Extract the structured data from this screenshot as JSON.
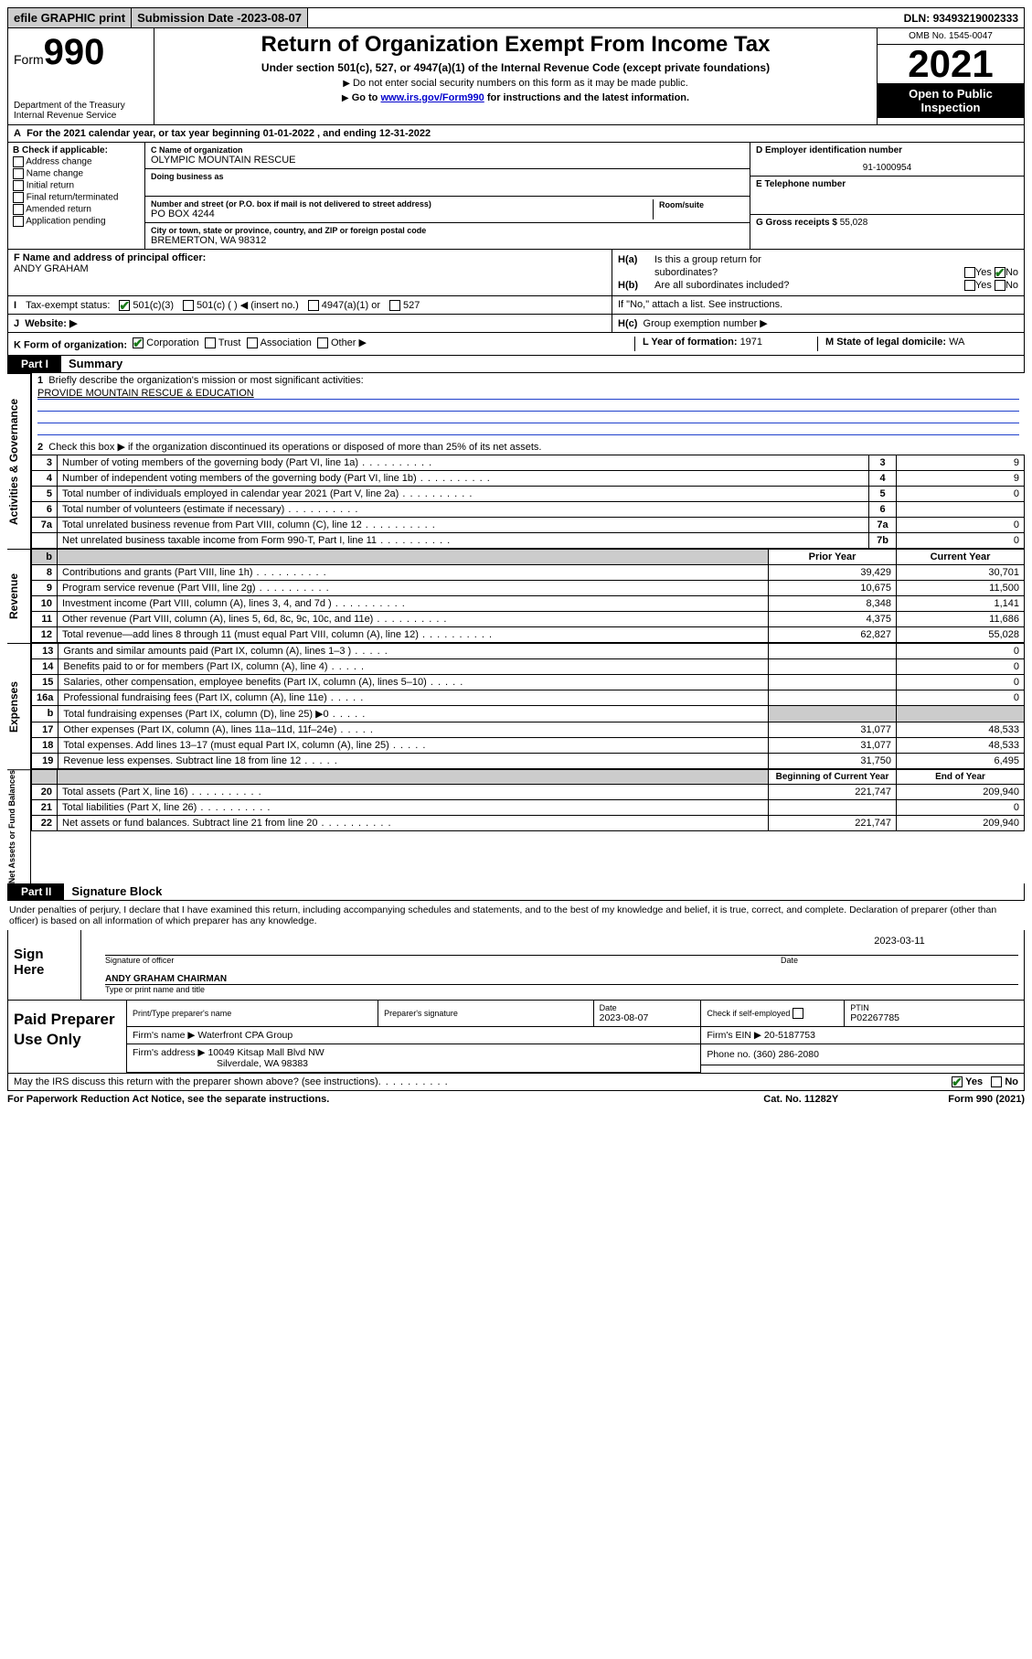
{
  "top": {
    "efile": "efile GRAPHIC print",
    "sub_label": "Submission Date - ",
    "sub_date": "2023-08-07",
    "dln_label": "DLN: ",
    "dln": "93493219002333"
  },
  "header": {
    "form_word": "Form",
    "form_num": "990",
    "dept": "Department of the Treasury",
    "irs": "Internal Revenue Service",
    "title": "Return of Organization Exempt From Income Tax",
    "subtitle": "Under section 501(c), 527, or 4947(a)(1) of the Internal Revenue Code (except private foundations)",
    "note1": "Do not enter social security numbers on this form as it may be made public.",
    "note2_pre": "Go to ",
    "note2_link": "www.irs.gov/Form990",
    "note2_post": " for instructions and the latest information.",
    "omb": "OMB No. 1545-0047",
    "year": "2021",
    "open1": "Open to Public",
    "open2": "Inspection"
  },
  "a_line": "For the 2021 calendar year, or tax year beginning 01-01-2022   , and ending 12-31-2022",
  "a_prefix": "A",
  "b": {
    "header": "B Check if applicable:",
    "items": [
      "Address change",
      "Name change",
      "Initial return",
      "Final return/terminated",
      "Amended return",
      "Application pending"
    ]
  },
  "c": {
    "name_lbl": "C Name of organization",
    "name": "OLYMPIC MOUNTAIN RESCUE",
    "dba_lbl": "Doing business as",
    "addr_lbl": "Number and street (or P.O. box if mail is not delivered to street address)",
    "room_lbl": "Room/suite",
    "addr": "PO BOX 4244",
    "city_lbl": "City or town, state or province, country, and ZIP or foreign postal code",
    "city": "BREMERTON, WA  98312"
  },
  "d": {
    "ein_lbl": "D Employer identification number",
    "ein": "91-1000954",
    "tel_lbl": "E Telephone number",
    "gross_lbl": "G Gross receipts $ ",
    "gross": "55,028"
  },
  "f": {
    "lbl": "F  Name and address of principal officer:",
    "name": "ANDY GRAHAM"
  },
  "h": {
    "a_lbl": "Is this a group return for",
    "a_lbl2": "subordinates?",
    "a_yes": "Yes",
    "a_no": "No",
    "b_lbl": "Are all subordinates included?",
    "b_note": "If \"No,\" attach a list. See instructions.",
    "c_lbl": "Group exemption number ▶"
  },
  "i": {
    "lbl": "Tax-exempt status:",
    "opt1": "501(c)(3)",
    "opt2": "501(c) (   ) ◀ (insert no.)",
    "opt3": "4947(a)(1) or",
    "opt4": "527"
  },
  "j": {
    "lbl": "Website: ▶"
  },
  "k": {
    "lbl": "K Form of organization:",
    "opts": [
      "Corporation",
      "Trust",
      "Association",
      "Other ▶"
    ]
  },
  "l": {
    "lbl": "L Year of formation: ",
    "val": "1971"
  },
  "m": {
    "lbl": "M State of legal domicile: ",
    "val": "WA"
  },
  "part1": {
    "tag": "Part I",
    "title": "Summary"
  },
  "summary": {
    "line1_lbl": "Briefly describe the organization's mission or most significant activities:",
    "line1_val": "PROVIDE MOUNTAIN RESCUE & EDUCATION",
    "line2": "Check this box ▶       if the organization discontinued its operations or disposed of more than 25% of its net assets.",
    "rows_gov": [
      {
        "n": "3",
        "t": "Number of voting members of the governing body (Part VI, line 1a)",
        "box": "3",
        "v": "9"
      },
      {
        "n": "4",
        "t": "Number of independent voting members of the governing body (Part VI, line 1b)",
        "box": "4",
        "v": "9"
      },
      {
        "n": "5",
        "t": "Total number of individuals employed in calendar year 2021 (Part V, line 2a)",
        "box": "5",
        "v": "0"
      },
      {
        "n": "6",
        "t": "Total number of volunteers (estimate if necessary)",
        "box": "6",
        "v": ""
      },
      {
        "n": "7a",
        "t": "Total unrelated business revenue from Part VIII, column (C), line 12",
        "box": "7a",
        "v": "0"
      },
      {
        "n": "",
        "t": "Net unrelated business taxable income from Form 990-T, Part I, line 11",
        "box": "7b",
        "v": "0"
      }
    ],
    "headers": {
      "b": "b",
      "prior": "Prior Year",
      "current": "Current Year"
    },
    "rev": [
      {
        "n": "8",
        "t": "Contributions and grants (Part VIII, line 1h)",
        "p": "39,429",
        "c": "30,701"
      },
      {
        "n": "9",
        "t": "Program service revenue (Part VIII, line 2g)",
        "p": "10,675",
        "c": "11,500"
      },
      {
        "n": "10",
        "t": "Investment income (Part VIII, column (A), lines 3, 4, and 7d )",
        "p": "8,348",
        "c": "1,141"
      },
      {
        "n": "11",
        "t": "Other revenue (Part VIII, column (A), lines 5, 6d, 8c, 9c, 10c, and 11e)",
        "p": "4,375",
        "c": "11,686"
      },
      {
        "n": "12",
        "t": "Total revenue—add lines 8 through 11 (must equal Part VIII, column (A), line 12)",
        "p": "62,827",
        "c": "55,028"
      }
    ],
    "exp": [
      {
        "n": "13",
        "t": "Grants and similar amounts paid (Part IX, column (A), lines 1–3 )",
        "p": "",
        "c": "0"
      },
      {
        "n": "14",
        "t": "Benefits paid to or for members (Part IX, column (A), line 4)",
        "p": "",
        "c": "0"
      },
      {
        "n": "15",
        "t": "Salaries, other compensation, employee benefits (Part IX, column (A), lines 5–10)",
        "p": "",
        "c": "0"
      },
      {
        "n": "16a",
        "t": "Professional fundraising fees (Part IX, column (A), line 11e)",
        "p": "",
        "c": "0"
      },
      {
        "n": "b",
        "t": "Total fundraising expenses (Part IX, column (D), line 25) ▶0",
        "p": "shade",
        "c": "shade"
      },
      {
        "n": "17",
        "t": "Other expenses (Part IX, column (A), lines 11a–11d, 11f–24e)",
        "p": "31,077",
        "c": "48,533"
      },
      {
        "n": "18",
        "t": "Total expenses. Add lines 13–17 (must equal Part IX, column (A), line 25)",
        "p": "31,077",
        "c": "48,533"
      },
      {
        "n": "19",
        "t": "Revenue less expenses. Subtract line 18 from line 12",
        "p": "31,750",
        "c": "6,495"
      }
    ],
    "bal_h": {
      "b": "Beginning of Current Year",
      "e": "End of Year"
    },
    "bal": [
      {
        "n": "20",
        "t": "Total assets (Part X, line 16)",
        "p": "221,747",
        "c": "209,940"
      },
      {
        "n": "21",
        "t": "Total liabilities (Part X, line 26)",
        "p": "",
        "c": "0"
      },
      {
        "n": "22",
        "t": "Net assets or fund balances. Subtract line 21 from line 20",
        "p": "221,747",
        "c": "209,940"
      }
    ]
  },
  "sides": {
    "gov": "Activities & Governance",
    "rev": "Revenue",
    "exp": "Expenses",
    "bal": "Net Assets or Fund Balances"
  },
  "part2": {
    "tag": "Part II",
    "title": "Signature Block"
  },
  "declare": "Under penalties of perjury, I declare that I have examined this return, including accompanying schedules and statements, and to the best of my knowledge and belief, it is true, correct, and complete. Declaration of preparer (other than officer) is based on all information of which preparer has any knowledge.",
  "sign": {
    "here": "Sign Here",
    "sig_lbl": "Signature of officer",
    "date_lbl": "Date",
    "date": "2023-03-11",
    "name": "ANDY GRAHAM  CHAIRMAN",
    "name_lbl": "Type or print name and title"
  },
  "paid": {
    "title": "Paid Preparer Use Only",
    "h": [
      "Print/Type preparer's name",
      "Preparer's signature",
      "Date",
      "",
      "PTIN"
    ],
    "date": "2023-08-07",
    "check_lbl": "Check        if self-employed",
    "ptin": "P02267785",
    "firm_lbl": "Firm's name     ▶",
    "firm": "Waterfront CPA Group",
    "ein_lbl": "Firm's EIN ▶ ",
    "ein": "20-5187753",
    "addr_lbl": "Firm's address ▶",
    "addr1": "10049 Kitsap Mall Blvd NW",
    "addr2": "Silverdale, WA  98383",
    "phone_lbl": "Phone no. ",
    "phone": "(360) 286-2080"
  },
  "discuss": {
    "q": "May the IRS discuss this return with the preparer shown above? (see instructions)",
    "yes": "Yes",
    "no": "No"
  },
  "footer": {
    "left": "For Paperwork Reduction Act Notice, see the separate instructions.",
    "mid": "Cat. No. 11282Y",
    "right": "Form 990 (2021)"
  }
}
